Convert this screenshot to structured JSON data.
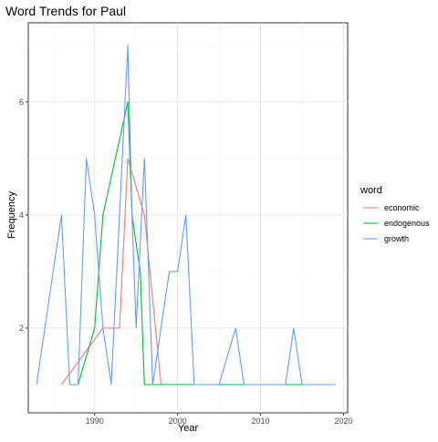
{
  "chart_data": {
    "type": "line",
    "title": "Word Trends for Paul",
    "xlabel": "Year",
    "ylabel": "Frequency",
    "xlim": [
      1982,
      2020.5
    ],
    "ylim": [
      0.5,
      7.4
    ],
    "x_ticks": [
      1990,
      2000,
      2010,
      2020
    ],
    "y_ticks": [
      2,
      4,
      6
    ],
    "grid": true,
    "legend_placement": "right",
    "legend_title": "word",
    "series": [
      {
        "name": "economic",
        "color": "#F8766D",
        "points": [
          [
            1986,
            1
          ],
          [
            1991,
            2
          ],
          [
            1993,
            2
          ],
          [
            1994,
            5
          ],
          [
            1996,
            4
          ],
          [
            1998,
            1
          ],
          [
            2019,
            1
          ]
        ]
      },
      {
        "name": "endogenous",
        "color": "#00BA38",
        "points": [
          [
            1988,
            1
          ],
          [
            1990,
            2
          ],
          [
            1991,
            4
          ],
          [
            1994,
            6
          ],
          [
            1994.5,
            4
          ],
          [
            1995.5,
            3
          ],
          [
            1996,
            1
          ],
          [
            2019,
            1
          ]
        ]
      },
      {
        "name": "growth",
        "color": "#619CFF",
        "points": [
          [
            1983,
            1
          ],
          [
            1986,
            4
          ],
          [
            1987,
            1
          ],
          [
            1988,
            1
          ],
          [
            1989,
            5
          ],
          [
            1990,
            4
          ],
          [
            1991,
            2
          ],
          [
            1992,
            1
          ],
          [
            1993,
            4
          ],
          [
            1994,
            7
          ],
          [
            1994.5,
            4
          ],
          [
            1995,
            2
          ],
          [
            1996,
            5
          ],
          [
            1997,
            1
          ],
          [
            1998,
            2
          ],
          [
            1999,
            3
          ],
          [
            2000,
            3
          ],
          [
            2001,
            4
          ],
          [
            2002,
            1
          ],
          [
            2005,
            1
          ],
          [
            2007,
            2
          ],
          [
            2008,
            1
          ],
          [
            2013,
            1
          ],
          [
            2014,
            2
          ],
          [
            2015,
            1
          ],
          [
            2019,
            1
          ]
        ]
      }
    ]
  }
}
